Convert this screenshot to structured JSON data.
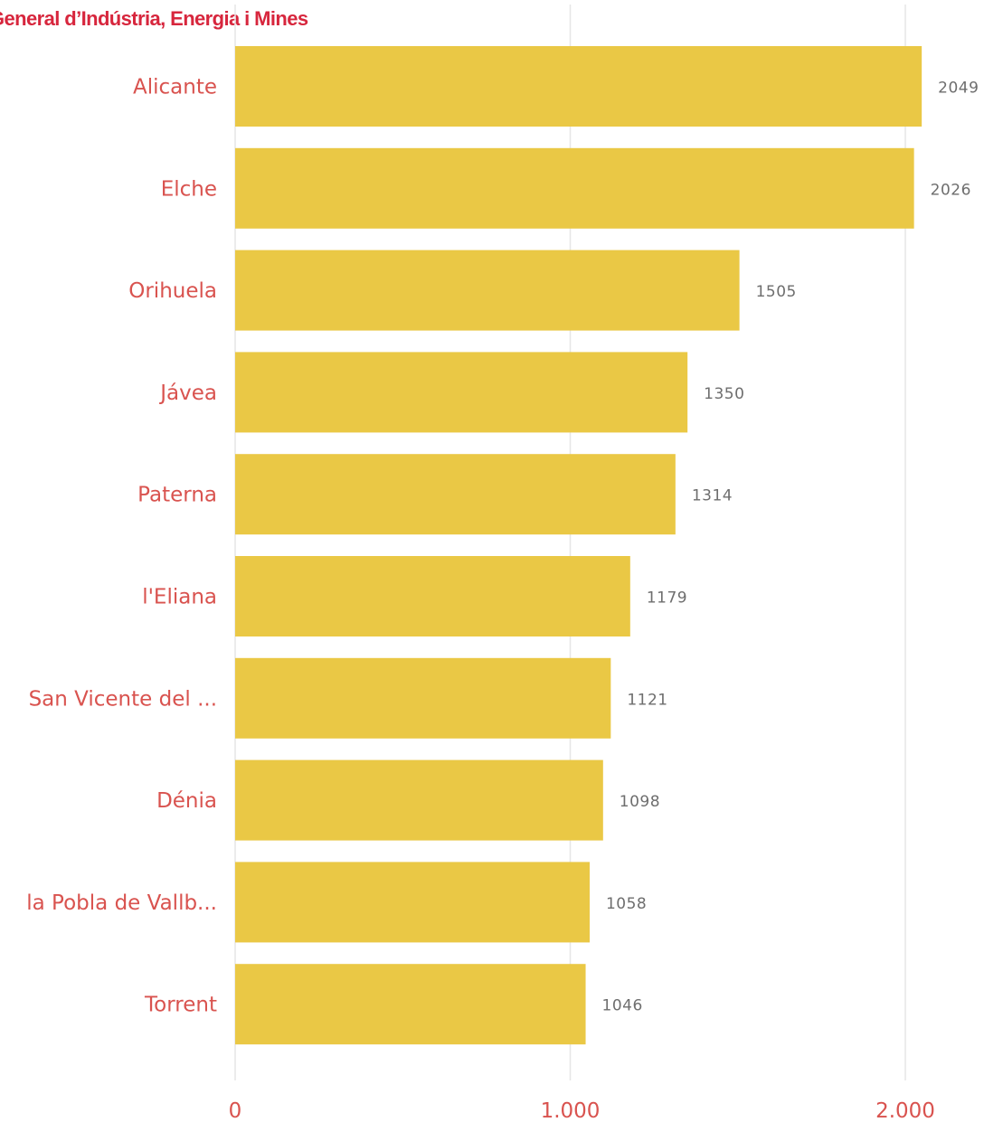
{
  "header": {
    "title": "General d’Indústria, Energia i Mines"
  },
  "chart_data": {
    "type": "bar",
    "orientation": "horizontal",
    "categories": [
      "Alicante",
      "Elche",
      "Orihuela",
      "Jávea",
      "Paterna",
      "l'Eliana",
      "San Vicente del ...",
      "Dénia",
      "la Pobla de Vallb...",
      "Torrent"
    ],
    "values": [
      2049,
      2026,
      1505,
      1350,
      1314,
      1179,
      1121,
      1098,
      1058,
      1046
    ],
    "value_labels": [
      "2049",
      "2026",
      "1505",
      "1350",
      "1314",
      "1179",
      "1121",
      "1098",
      "1058",
      "1046"
    ],
    "xlim": [
      0,
      2000
    ],
    "x_ticks": [
      0,
      1000,
      2000
    ],
    "x_tick_labels": [
      "0",
      "1.000",
      "2.000"
    ],
    "grid": true,
    "colors": {
      "bar": "#eac845",
      "category_label": "#d9534f",
      "value_label": "#6e6e6e",
      "title": "#d7263d"
    }
  }
}
